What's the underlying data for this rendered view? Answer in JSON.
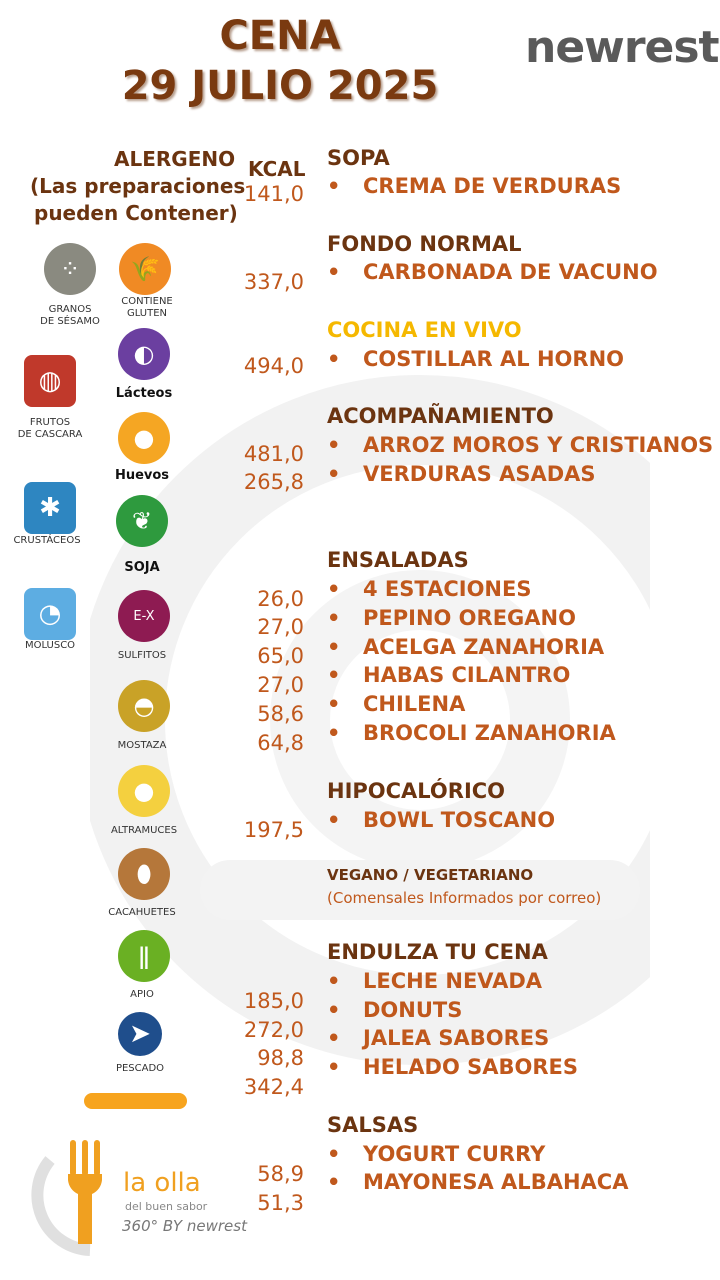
{
  "header": {
    "title_line1": "CENA",
    "title_line2": "29  JULIO 2025",
    "logo": "newrest"
  },
  "allergen_header": {
    "line1": "ALERGENO",
    "line2": "(Las preparaciones",
    "line3": "pueden Contener)"
  },
  "kcal_header": "KCAL",
  "allergens": [
    {
      "name": "granos-de-sesamo",
      "label": "GRANOS\nDE SÉSAMO",
      "color": "#8a8a80"
    },
    {
      "name": "contiene-gluten",
      "label": "CONTIENE\nGLUTEN",
      "color": "#f08a24"
    },
    {
      "name": "lacteos",
      "label": "Lácteos",
      "color": "#6b3fa0"
    },
    {
      "name": "frutos-de-cascara",
      "label": "FRUTOS\nDE CASCARA",
      "color": "#c0392b"
    },
    {
      "name": "huevos",
      "label": "Huevos",
      "color": "#f5a623"
    },
    {
      "name": "crustaceos",
      "label": "CRUSTÁCEOS",
      "color": "#2e86c1"
    },
    {
      "name": "soja",
      "label": "SOJA",
      "color": "#2e9a3e"
    },
    {
      "name": "molusco",
      "label": "MOLUSCO",
      "color": "#5dade2"
    },
    {
      "name": "sulfitos",
      "label": "SULFITOS",
      "color": "#8e1b52"
    },
    {
      "name": "mostaza",
      "label": "MOSTAZA",
      "color": "#c9a227"
    },
    {
      "name": "altramuces",
      "label": "ALTRAMUCES",
      "color": "#f4d03f"
    },
    {
      "name": "cacahuetes",
      "label": "CACAHUETES",
      "color": "#b5773a"
    },
    {
      "name": "apio",
      "label": "APIO",
      "color": "#6ab023"
    },
    {
      "name": "pescado",
      "label": "PESCADO",
      "color": "#1f4e8c"
    }
  ],
  "kcal_values": [
    "141,0",
    "337,0",
    "494,0",
    "481,0",
    "265,8",
    "26,0",
    "27,0",
    "65,0",
    "27,0",
    "58,6",
    "64,8",
    "197,5",
    "185,0",
    "272,0",
    "98,8",
    "342,4",
    "58,9",
    "51,3"
  ],
  "sections": {
    "sopa": {
      "title": "SOPA",
      "items": [
        "CREMA DE VERDURAS"
      ]
    },
    "fondo": {
      "title": "FONDO NORMAL",
      "items": [
        "CARBONADA DE VACUNO"
      ]
    },
    "vivo": {
      "title": "COCINA EN VIVO",
      "items": [
        "COSTILLAR AL HORNO"
      ]
    },
    "acomp": {
      "title": "ACOMPAÑAMIENTO",
      "items": [
        "ARROZ  MOROS Y CRISTIANOS",
        "VERDURAS ASADAS"
      ]
    },
    "ensaladas": {
      "title": "ENSALADAS",
      "items": [
        "4 ESTACIONES",
        "PEPINO OREGANO",
        "ACELGA ZANAHORIA",
        "HABAS CILANTRO",
        "CHILENA",
        "BROCOLI ZANAHORIA"
      ]
    },
    "hipo": {
      "title": "HIPOCALÓRICO",
      "items": [
        "BOWL TOSCANO"
      ]
    },
    "vegano": {
      "title": "VEGANO / VEGETARIANO",
      "note": "(Comensales Informados por correo)"
    },
    "endulza": {
      "title": "ENDULZA TU CENA",
      "items": [
        "LECHE NEVADA",
        "DONUTS",
        "JALEA SABORES",
        "HELADO SABORES"
      ]
    },
    "salsas": {
      "title": "SALSAS",
      "items": [
        "YOGURT  CURRY",
        "MAYONESA  ALBAHACA"
      ]
    }
  },
  "bullet": "•",
  "footer": {
    "brand": "la olla",
    "tagline": "del buen sabor",
    "sub": "360° BY newrest"
  }
}
